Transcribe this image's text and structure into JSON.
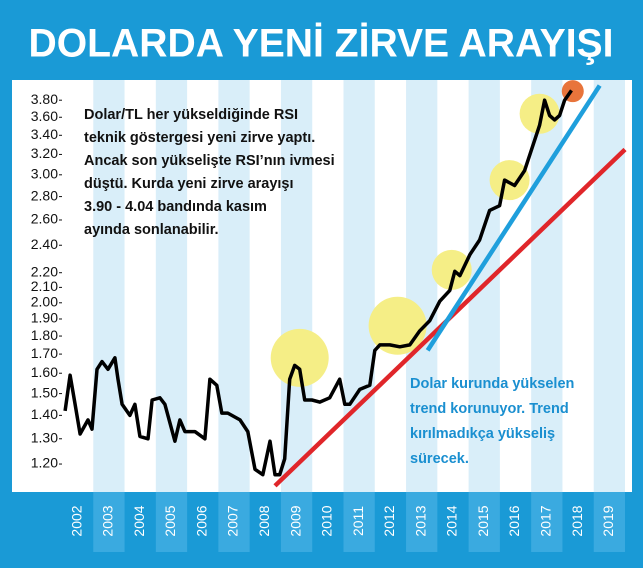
{
  "chart_data": {
    "type": "line",
    "title": "DOLARDA YENİ ZİRVE ARAYIŞI",
    "log_scale": true,
    "xlim": [
      2002,
      2020
    ],
    "xticks": [
      {
        "value": 2002.5,
        "label": "2002"
      },
      {
        "value": 2003.5,
        "label": "2003"
      },
      {
        "value": 2004.5,
        "label": "2004"
      },
      {
        "value": 2005.5,
        "label": "2005"
      },
      {
        "value": 2006.5,
        "label": "2006"
      },
      {
        "value": 2007.5,
        "label": "2007"
      },
      {
        "value": 2008.5,
        "label": "2008"
      },
      {
        "value": 2009.5,
        "label": "2009"
      },
      {
        "value": 2010.5,
        "label": "2010"
      },
      {
        "value": 2011.5,
        "label": "2011"
      },
      {
        "value": 2012.5,
        "label": "2012"
      },
      {
        "value": 2013.5,
        "label": "2013"
      },
      {
        "value": 2014.5,
        "label": "2014"
      },
      {
        "value": 2015.5,
        "label": "2015"
      },
      {
        "value": 2016.5,
        "label": "2016"
      },
      {
        "value": 2017.5,
        "label": "2017"
      },
      {
        "value": 2018.5,
        "label": "2018"
      },
      {
        "value": 2019.5,
        "label": "2019"
      }
    ],
    "ylim": [
      1.1,
      4.0
    ],
    "yticks": [
      {
        "value": 1.2,
        "label": "1.20"
      },
      {
        "value": 1.3,
        "label": "1.30"
      },
      {
        "value": 1.4,
        "label": "1.40"
      },
      {
        "value": 1.5,
        "label": "1.50"
      },
      {
        "value": 1.6,
        "label": "1.60"
      },
      {
        "value": 1.7,
        "label": "1.70"
      },
      {
        "value": 1.8,
        "label": "1.80"
      },
      {
        "value": 1.9,
        "label": "1.90"
      },
      {
        "value": 2.0,
        "label": "2.00"
      },
      {
        "value": 2.1,
        "label": "2.10"
      },
      {
        "value": 2.2,
        "label": "2.20"
      },
      {
        "value": 2.4,
        "label": "2.40"
      },
      {
        "value": 2.6,
        "label": "2.60"
      },
      {
        "value": 2.8,
        "label": "2.80"
      },
      {
        "value": 3.0,
        "label": "3.00"
      },
      {
        "value": 3.2,
        "label": "3.20"
      },
      {
        "value": 3.4,
        "label": "3.40"
      },
      {
        "value": 3.6,
        "label": "3.60"
      },
      {
        "value": 3.8,
        "label": "3.80"
      }
    ],
    "color": "#000000",
    "x": [
      2002.1,
      2002.26,
      2002.42,
      2002.58,
      2002.83,
      2002.96,
      2003.12,
      2003.28,
      2003.47,
      2003.69,
      2003.79,
      2003.92,
      2004.17,
      2004.33,
      2004.49,
      2004.75,
      2004.88,
      2005.13,
      2005.29,
      2005.61,
      2005.77,
      2005.93,
      2006.25,
      2006.57,
      2006.73,
      2006.95,
      2007.11,
      2007.3,
      2007.69,
      2007.94,
      2008.17,
      2008.42,
      2008.65,
      2008.81,
      2008.96,
      2009.12,
      2009.28,
      2009.44,
      2009.6,
      2009.76,
      2009.99,
      2010.24,
      2010.56,
      2010.88,
      2011.04,
      2011.2,
      2011.52,
      2011.84,
      2012.0,
      2012.16,
      2012.48,
      2012.8,
      2013.12,
      2013.44,
      2013.76,
      2014.08,
      2014.4,
      2014.56,
      2014.72,
      2015.04,
      2015.35,
      2015.67,
      2015.99,
      2016.15,
      2016.47,
      2016.79,
      2017.27,
      2017.43,
      2017.59,
      2017.75,
      2017.91,
      2018.07,
      2018.29
    ],
    "values": [
      1.42,
      1.59,
      1.45,
      1.32,
      1.38,
      1.34,
      1.62,
      1.66,
      1.62,
      1.68,
      1.57,
      1.45,
      1.4,
      1.45,
      1.31,
      1.3,
      1.47,
      1.48,
      1.45,
      1.29,
      1.38,
      1.33,
      1.33,
      1.3,
      1.57,
      1.54,
      1.41,
      1.41,
      1.38,
      1.33,
      1.18,
      1.16,
      1.29,
      1.16,
      1.16,
      1.22,
      1.57,
      1.64,
      1.62,
      1.47,
      1.47,
      1.46,
      1.48,
      1.57,
      1.45,
      1.45,
      1.52,
      1.54,
      1.72,
      1.75,
      1.75,
      1.74,
      1.75,
      1.83,
      1.89,
      2.01,
      2.08,
      2.21,
      2.18,
      2.33,
      2.44,
      2.68,
      2.72,
      2.95,
      2.9,
      3.04,
      3.51,
      3.8,
      3.62,
      3.57,
      3.62,
      3.8,
      3.92
    ],
    "trend_lines": [
      {
        "color": "#e0262a",
        "x": [
          2008.81,
          2020.0
        ],
        "values": [
          1.12,
          3.25
        ]
      },
      {
        "color": "#1f9fdc",
        "x": [
          2013.69,
          2019.19
        ],
        "values": [
          1.72,
          3.98
        ]
      }
    ],
    "highlights": [
      {
        "color": "#f5ee86",
        "x": 2009.6,
        "value": 1.68
      },
      {
        "color": "#f5ee86",
        "x": 2012.73,
        "value": 1.86
      },
      {
        "color": "#f5ee86",
        "x": 2014.46,
        "value": 2.22
      },
      {
        "color": "#f5ee86",
        "x": 2016.31,
        "value": 2.95
      },
      {
        "color": "#f5ee86",
        "x": 2017.27,
        "value": 3.64
      },
      {
        "color": "#e8743b",
        "x": 2018.33,
        "value": 3.91
      }
    ],
    "annotations": [
      {
        "color": "#111111",
        "lines": [
          "Dolar/TL her yükseldiğinde RSI",
          "teknik göstergesi yeni zirve yaptı.",
          "Ancak son yükselişte RSI’nın ivmesi",
          "düştü. Kurda yeni zirve arayışı",
          "3.90 - 4.04 bandında kasım",
          " ayında sonlanabilir."
        ]
      },
      {
        "color": "#1a8fd0",
        "lines": [
          "Dolar kurunda yükselen",
          "trend korunuyor. Trend",
          "kırılmadıkça yükseliş",
          "sürecek."
        ]
      }
    ]
  }
}
